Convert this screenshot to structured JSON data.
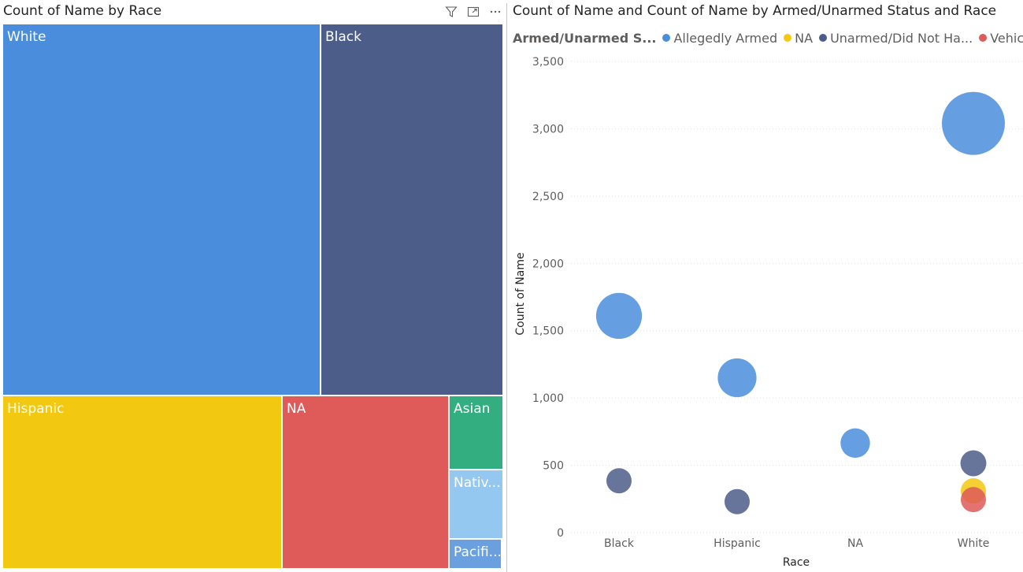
{
  "left_visual": {
    "title": "Count of Name by Race",
    "header_icons": [
      "filter-icon",
      "focus-mode-icon",
      "more-options-icon"
    ],
    "chart_data": {
      "type": "treemap",
      "tiles": [
        {
          "label": "White",
          "color": "#4A8DDC"
        },
        {
          "label": "Black",
          "color": "#4C5D8A"
        },
        {
          "label": "Hispanic",
          "color": "#F2C811"
        },
        {
          "label": "NA",
          "color": "#DE5B59"
        },
        {
          "label": "Asian",
          "color": "#33AE81"
        },
        {
          "label": "Nativ...",
          "color": "#95C8F0"
        },
        {
          "label": "Pacifi...",
          "color": "#6A9FE0"
        }
      ]
    }
  },
  "right_visual": {
    "title": "Count of Name and Count of Name by Armed/Unarmed Status and Race",
    "legend": {
      "title": "Armed/Unarmed S...",
      "items": [
        {
          "label": "Allegedly Armed",
          "color": "#4A8DDC"
        },
        {
          "label": "NA",
          "color": "#F2C811"
        },
        {
          "label": "Unarmed/Did Not Ha...",
          "color": "#4C5D8A"
        },
        {
          "label": "Vehicle",
          "color": "#DE5B59"
        }
      ]
    },
    "chart_data": {
      "type": "scatter",
      "xlabel": "Race",
      "ylabel": "Count of Name",
      "categories": [
        "Black",
        "Hispanic",
        "NA",
        "White"
      ],
      "ylim": [
        0,
        3500
      ],
      "yticks": [
        0,
        500,
        1000,
        1500,
        2000,
        2500,
        3000,
        3500
      ],
      "ytick_labels": [
        "0",
        "500",
        "1,000",
        "1,500",
        "2,000",
        "2,500",
        "3,000",
        "3,500"
      ],
      "grid": true,
      "legend_position": "top-left",
      "series": [
        {
          "name": "Allegedly Armed",
          "color": "#4A8DDC",
          "points": [
            {
              "x": "Black",
              "y": 1610
            },
            {
              "x": "Hispanic",
              "y": 1150
            },
            {
              "x": "NA",
              "y": 665
            },
            {
              "x": "White",
              "y": 3040
            }
          ]
        },
        {
          "name": "Unarmed/Did Not Ha...",
          "color": "#4C5D8A",
          "points": [
            {
              "x": "Black",
              "y": 385
            },
            {
              "x": "Hispanic",
              "y": 230
            },
            {
              "x": "White",
              "y": 515
            }
          ]
        },
        {
          "name": "NA",
          "color": "#F2C811",
          "points": [
            {
              "x": "White",
              "y": 310
            }
          ]
        },
        {
          "name": "Vehicle",
          "color": "#DE5B59",
          "points": [
            {
              "x": "White",
              "y": 245
            }
          ]
        }
      ]
    }
  }
}
